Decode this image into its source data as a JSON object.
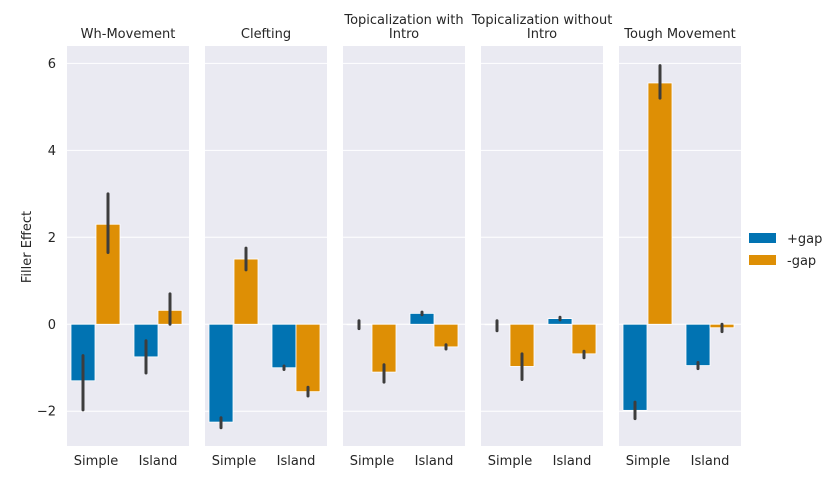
{
  "chart_data": {
    "type": "bar",
    "ylabel": "Filler Effect",
    "ylim": [
      -2.8,
      6.4
    ],
    "yticks": [
      -2,
      0,
      2,
      4,
      6
    ],
    "categories": [
      "Simple",
      "Island"
    ],
    "legend_placement": "right",
    "grid": true,
    "series_meta": [
      {
        "name": "+gap",
        "color": "#0173b2"
      },
      {
        "name": "-gap",
        "color": "#de8f05"
      }
    ],
    "panels": [
      {
        "title": [
          "Wh-Movement"
        ],
        "values": {
          "+gap": [
            -1.3,
            -0.75
          ],
          "-gap": [
            2.3,
            0.32
          ]
        },
        "ci": {
          "+gap": [
            [
              -1.97,
              -0.72
            ],
            [
              -1.12,
              -0.38
            ]
          ],
          "-gap": [
            [
              1.65,
              3.0
            ],
            [
              0.0,
              0.7
            ]
          ]
        }
      },
      {
        "title": [
          "Clefting"
        ],
        "values": {
          "+gap": [
            -2.25,
            -1.0
          ],
          "-gap": [
            1.5,
            -1.55
          ]
        },
        "ci": {
          "+gap": [
            [
              -2.38,
              -2.15
            ],
            [
              -1.04,
              -0.96
            ]
          ],
          "-gap": [
            [
              1.25,
              1.75
            ],
            [
              -1.65,
              -1.45
            ]
          ]
        }
      },
      {
        "title": [
          "Topicalization with",
          "Intro"
        ],
        "values": {
          "+gap": [
            0.0,
            0.25
          ],
          "-gap": [
            -1.1,
            -0.52
          ]
        },
        "ci": {
          "+gap": [
            [
              -0.1,
              0.08
            ],
            [
              0.22,
              0.28
            ]
          ],
          "-gap": [
            [
              -1.33,
              -0.93
            ],
            [
              -0.57,
              -0.47
            ]
          ]
        }
      },
      {
        "title": [
          "Topicalization without",
          "Intro"
        ],
        "values": {
          "+gap": [
            0.0,
            0.13
          ],
          "-gap": [
            -0.97,
            -0.68
          ]
        },
        "ci": {
          "+gap": [
            [
              -0.15,
              0.08
            ],
            [
              0.1,
              0.16
            ]
          ],
          "-gap": [
            [
              -1.27,
              -0.68
            ],
            [
              -0.77,
              -0.62
            ]
          ]
        }
      },
      {
        "title": [
          "Tough Movement"
        ],
        "values": {
          "+gap": [
            -1.98,
            -0.95
          ],
          "-gap": [
            5.55,
            -0.08
          ]
        },
        "ci": {
          "+gap": [
            [
              -2.17,
              -1.79
            ],
            [
              -1.02,
              -0.88
            ]
          ],
          "-gap": [
            [
              5.2,
              5.95
            ],
            [
              -0.17,
              0.0
            ]
          ]
        }
      }
    ]
  }
}
